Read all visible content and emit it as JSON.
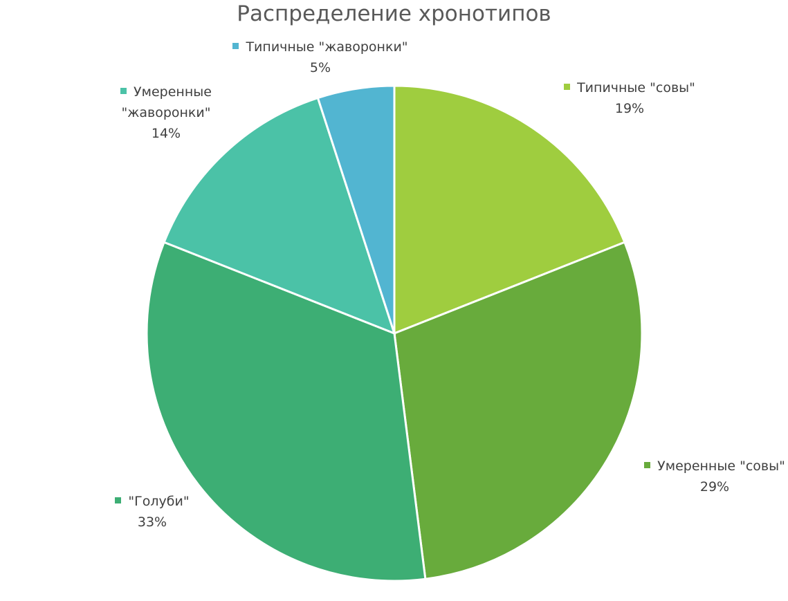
{
  "chart_data": {
    "type": "pie",
    "title": "Распределение хронотипов",
    "categories": [
      "Типичные \"совы\"",
      "Умеренные \"совы\"",
      "\"Голуби\"",
      "Умеренные \"жаворонки\"",
      "Типичные \"жаворонки\""
    ],
    "values": [
      19,
      29,
      33,
      14,
      5
    ],
    "value_labels": [
      "19%",
      "29%",
      "33%",
      "14%",
      "5%"
    ],
    "colors": [
      "#9fcd3f",
      "#68ab3c",
      "#3dae74",
      "#4bc2a7",
      "#52b5d1"
    ]
  }
}
